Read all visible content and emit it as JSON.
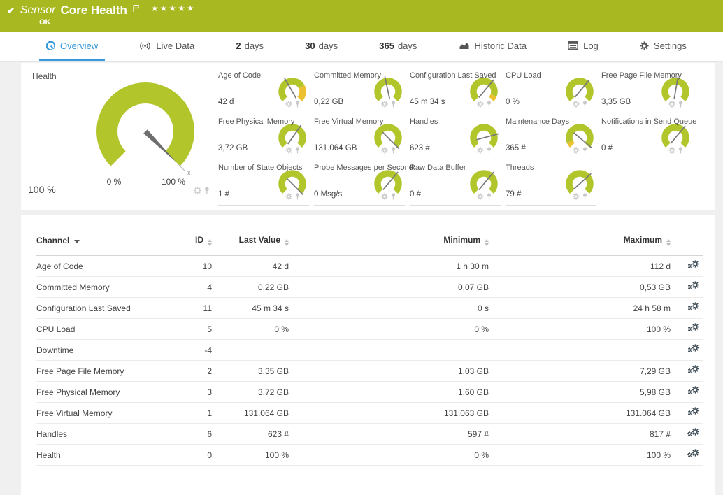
{
  "colors": {
    "brand_green": "#a8b820",
    "gauge_green": "#b2c62c",
    "gauge_yellow": "#ecc12f",
    "active_tab_blue": "#3398dc",
    "needle_gray": "#787878",
    "mini_icon_gray": "#c8c8c8",
    "row_gear_dark": "#3d4b54"
  },
  "header": {
    "check_icon": "✔",
    "type_label": "Sensor",
    "title": "Core Health",
    "status": "OK",
    "stars": "★★★★★"
  },
  "tabs": [
    {
      "label": "Overview",
      "icon": "gauge-icon",
      "active": true
    },
    {
      "label": "Live Data",
      "icon": "broadcast-icon"
    },
    {
      "prefix": "2",
      "label": "days"
    },
    {
      "prefix": "30",
      "label": "days"
    },
    {
      "prefix": "365",
      "label": "days"
    },
    {
      "label": "Historic Data",
      "icon": "chart-icon"
    },
    {
      "label": "Log",
      "icon": "log-icon"
    },
    {
      "label": "Settings",
      "icon": "gear-icon"
    }
  ],
  "health": {
    "title": "Health",
    "value": "100 %",
    "scale_start": "0 %",
    "scale_end": "100 %",
    "avg_marker": "x̄",
    "needle_deg": 135
  },
  "gauges": [
    {
      "title": "Age of Code",
      "value": "42 d",
      "needle_deg": -30,
      "segments": [
        {
          "from": -135,
          "to": 63,
          "color": "green"
        },
        {
          "from": 63,
          "to": 135,
          "color": "yellow"
        }
      ]
    },
    {
      "title": "Committed Memory",
      "value": "0,22 GB",
      "needle_deg": -12
    },
    {
      "title": "Configuration Last Saved",
      "value": "45 m 34 s",
      "needle_deg": 40,
      "segments": [
        {
          "from": -135,
          "to": 112,
          "color": "green"
        },
        {
          "from": 112,
          "to": 135,
          "color": "yellow"
        }
      ]
    },
    {
      "title": "CPU Load",
      "value": "0 %",
      "needle_deg": 40
    },
    {
      "title": "Free Page File Memory",
      "value": "3,35 GB",
      "needle_deg": 10
    },
    {
      "title": "Free Physical Memory",
      "value": "3,72 GB",
      "needle_deg": 35
    },
    {
      "title": "Free Virtual Memory",
      "value": "131.064 GB",
      "needle_deg": 135
    },
    {
      "title": "Handles",
      "value": "623 #",
      "needle_deg": 75
    },
    {
      "title": "Maintenance Days",
      "value": "365 #",
      "needle_deg": 130,
      "segments": [
        {
          "from": -135,
          "to": -112,
          "color": "yellow"
        },
        {
          "from": -112,
          "to": 135,
          "color": "green"
        }
      ]
    },
    {
      "title": "Notifications in Send Queue",
      "value": "0 #",
      "needle_deg": 40
    },
    {
      "title": "Number of State Objects",
      "value": "1 #",
      "needle_deg": 135
    },
    {
      "title": "Probe Messages per Second",
      "value": "0 Msg/s",
      "needle_deg": 40
    },
    {
      "title": "Raw Data Buffer",
      "value": "0 #",
      "needle_deg": 40
    },
    {
      "title": "Threads",
      "value": "79 #",
      "needle_deg": 48
    }
  ],
  "channel_table": {
    "headers": {
      "channel": "Channel",
      "id": "ID",
      "last_value": "Last Value",
      "minimum": "Minimum",
      "maximum": "Maximum"
    },
    "rows": [
      {
        "channel": "Age of Code",
        "id": "10",
        "last_value": "42 d",
        "minimum": "1 h 30 m",
        "maximum": "112 d"
      },
      {
        "channel": "Committed Memory",
        "id": "4",
        "last_value": "0,22 GB",
        "minimum": "0,07 GB",
        "maximum": "0,53 GB"
      },
      {
        "channel": "Configuration Last Saved",
        "id": "11",
        "last_value": "45 m 34 s",
        "minimum": "0 s",
        "maximum": "24 h 58 m"
      },
      {
        "channel": "CPU Load",
        "id": "5",
        "last_value": "0 %",
        "minimum": "0 %",
        "maximum": "100 %"
      },
      {
        "channel": "Downtime",
        "id": "-4",
        "last_value": "",
        "minimum": "",
        "maximum": ""
      },
      {
        "channel": "Free Page File Memory",
        "id": "2",
        "last_value": "3,35 GB",
        "minimum": "1,03 GB",
        "maximum": "7,29 GB"
      },
      {
        "channel": "Free Physical Memory",
        "id": "3",
        "last_value": "3,72 GB",
        "minimum": "1,60 GB",
        "maximum": "5,98 GB"
      },
      {
        "channel": "Free Virtual Memory",
        "id": "1",
        "last_value": "131.064 GB",
        "minimum": "131.063 GB",
        "maximum": "131.064 GB"
      },
      {
        "channel": "Handles",
        "id": "6",
        "last_value": "623 #",
        "minimum": "597 #",
        "maximum": "817 #"
      },
      {
        "channel": "Health",
        "id": "0",
        "last_value": "100 %",
        "minimum": "0 %",
        "maximum": "100 %"
      }
    ]
  }
}
